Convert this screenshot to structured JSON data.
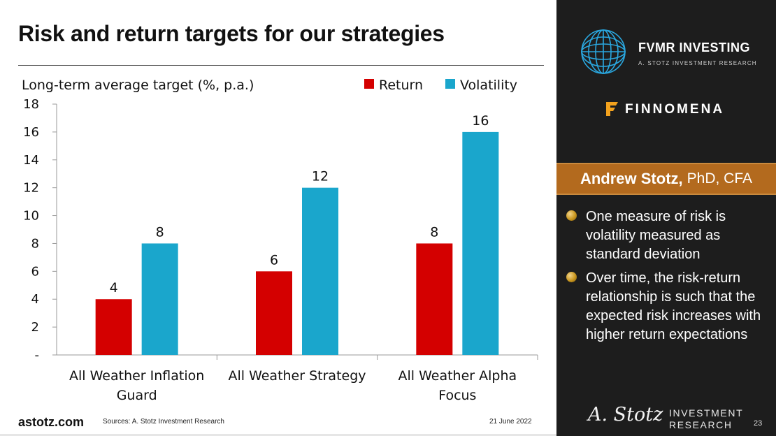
{
  "slide": {
    "title": "Risk and return targets for our strategies",
    "footer_site": "astotz.com",
    "footer_source": "Sources: A. Stotz Investment Research",
    "footer_date": "21 June 2022",
    "page_number": "23"
  },
  "chart_data": {
    "type": "bar",
    "title": "Long-term average target (%, p.a.)",
    "xlabel": "",
    "ylabel": "Long-term average target (%, p.a.)",
    "ylim": [
      0,
      18
    ],
    "yticks": [
      0,
      2,
      4,
      6,
      8,
      10,
      12,
      14,
      16,
      18
    ],
    "ytick_labels": [
      "-",
      "2",
      "4",
      "6",
      "8",
      "10",
      "12",
      "14",
      "16",
      "18"
    ],
    "categories": [
      [
        "All Weather Inflation",
        "Guard"
      ],
      [
        "All Weather Strategy"
      ],
      [
        "All Weather Alpha",
        "Focus"
      ]
    ],
    "series": [
      {
        "name": "Return",
        "color": "#d40000",
        "values": [
          4,
          6,
          8
        ]
      },
      {
        "name": "Volatility",
        "color": "#1aa6cc",
        "values": [
          8,
          12,
          16
        ]
      }
    ],
    "legend_position": "top-right",
    "grid": false
  },
  "panel": {
    "brand_name": "FVMR INVESTING",
    "brand_sub": "A. STOTZ INVESTMENT RESEARCH",
    "partner_name": "FINNOMENA",
    "presenter_name": "Andrew Stotz,",
    "presenter_credentials": "PhD, CFA",
    "bullets": [
      "One measure of risk is volatility measured as standard deviation",
      "Over time, the risk-return relationship is such that the expected risk increases with higher return expectations"
    ],
    "signature": "A. Stotz",
    "logo_line1": "INVESTMENT",
    "logo_line2": "RESEARCH",
    "accent_color": "#b36a1e",
    "panel_color": "#1d1d1d"
  }
}
